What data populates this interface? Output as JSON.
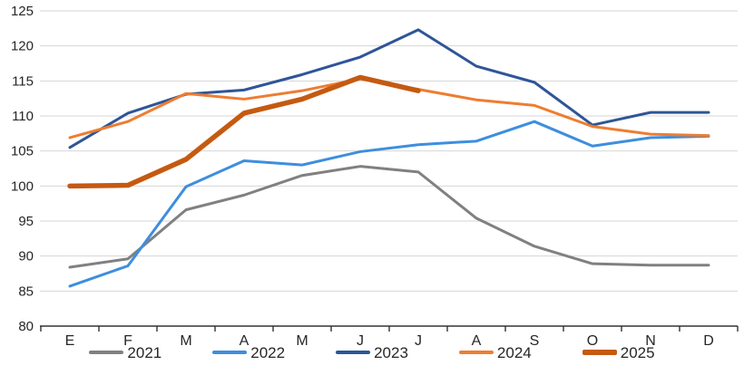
{
  "chart_data": {
    "type": "line",
    "title": "",
    "xlabel": "",
    "ylabel": "",
    "x_categories": [
      "E",
      "F",
      "M",
      "A",
      "M",
      "J",
      "J",
      "A",
      "S",
      "O",
      "N",
      "D"
    ],
    "y_axis": {
      "min": 80,
      "max": 125,
      "step": 5,
      "tick_labels": [
        "80",
        "85",
        "90",
        "95",
        "100",
        "105",
        "110",
        "115",
        "120",
        "125"
      ]
    },
    "grid": "horizontal-on",
    "legend_position": "bottom",
    "series": [
      {
        "name": "2021",
        "color": "#808080",
        "line_width": 3,
        "values": [
          88.4,
          89.6,
          96.6,
          98.7,
          101.5,
          102.8,
          102.0,
          95.4,
          91.4,
          88.9,
          88.7,
          88.7
        ]
      },
      {
        "name": "2022",
        "color": "#3E8EDE",
        "line_width": 3,
        "values": [
          85.7,
          88.6,
          99.9,
          103.6,
          103.0,
          104.9,
          105.9,
          106.4,
          109.2,
          105.7,
          106.9,
          107.1
        ]
      },
      {
        "name": "2023",
        "color": "#2F5597",
        "line_width": 3,
        "values": [
          105.5,
          110.4,
          113.1,
          113.7,
          115.9,
          118.4,
          122.3,
          117.1,
          114.8,
          108.7,
          110.5,
          110.5
        ]
      },
      {
        "name": "2024",
        "color": "#ED7D31",
        "line_width": 3,
        "values": [
          106.9,
          109.2,
          113.2,
          112.4,
          113.6,
          115.3,
          113.8,
          112.3,
          111.5,
          108.5,
          107.4,
          107.2
        ]
      },
      {
        "name": "2025",
        "color": "#C55A11",
        "line_width": 5.5,
        "values": [
          100.0,
          100.1,
          103.8,
          110.4,
          112.4,
          115.5,
          113.6
        ]
      }
    ]
  },
  "colors": {
    "background": "#ffffff",
    "gridline": "#d6d6d6",
    "axis_line": "#333333",
    "tick": "#333333",
    "label": "#262626"
  }
}
